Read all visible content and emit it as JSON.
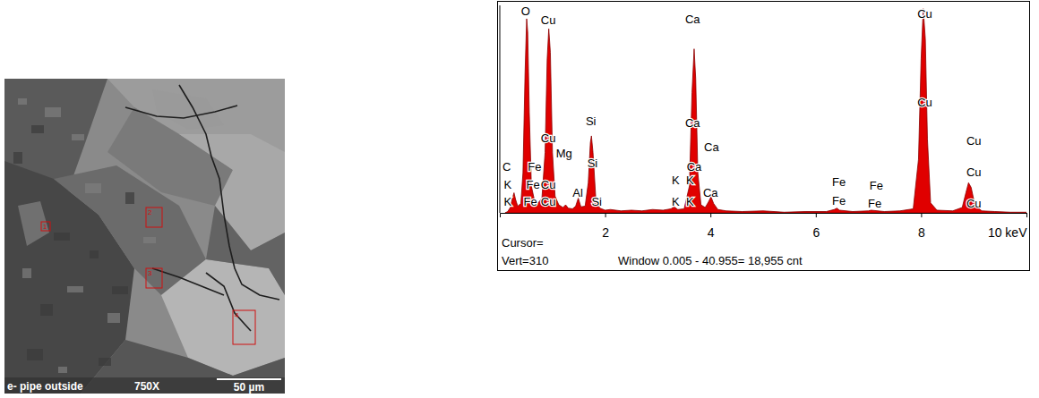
{
  "micrograph": {
    "caption": "e- pipe outside",
    "magnification": "750X",
    "scale_bar": "50 µm",
    "regions": [
      "1",
      "2",
      "3",
      "4"
    ]
  },
  "chart_data": {
    "type": "area",
    "color": "#e00000",
    "tick_labels": "x",
    "xlim": [
      0,
      10
    ],
    "ylim": [
      0,
      310
    ],
    "xticks": [
      2,
      4,
      6,
      8,
      {
        "value": 10,
        "label": "10 keV"
      }
    ],
    "x": [
      0.1,
      0.15,
      0.2,
      0.24,
      0.27,
      0.3,
      0.34,
      0.4,
      0.44,
      0.48,
      0.51,
      0.53,
      0.56,
      0.6,
      0.66,
      0.72,
      0.8,
      0.86,
      0.9,
      0.93,
      0.96,
      1.0,
      1.05,
      1.12,
      1.2,
      1.25,
      1.3,
      1.38,
      1.44,
      1.49,
      1.54,
      1.62,
      1.68,
      1.72,
      1.74,
      1.77,
      1.82,
      1.9,
      2.0,
      2.1,
      2.3,
      2.5,
      2.7,
      2.9,
      3.1,
      3.25,
      3.31,
      3.38,
      3.5,
      3.6,
      3.65,
      3.69,
      3.72,
      3.76,
      3.82,
      3.9,
      3.96,
      4.01,
      4.06,
      4.14,
      4.3,
      4.6,
      5.0,
      5.4,
      5.8,
      6.2,
      6.35,
      6.4,
      6.45,
      6.7,
      7.0,
      7.05,
      7.3,
      7.6,
      7.85,
      7.95,
      8.0,
      8.04,
      8.08,
      8.12,
      8.18,
      8.3,
      8.6,
      8.78,
      8.85,
      8.9,
      8.95,
      9.02,
      9.15,
      9.4,
      9.7,
      10.0
    ],
    "values": [
      0,
      2,
      8,
      22,
      30,
      20,
      10,
      14,
      60,
      210,
      290,
      270,
      150,
      40,
      18,
      14,
      22,
      90,
      230,
      275,
      240,
      90,
      25,
      12,
      8,
      12,
      7,
      6,
      10,
      22,
      9,
      10,
      45,
      105,
      115,
      90,
      25,
      7,
      4,
      5,
      3,
      4,
      3,
      5,
      4,
      6,
      9,
      5,
      6,
      40,
      180,
      245,
      200,
      60,
      12,
      8,
      16,
      24,
      14,
      5,
      3,
      2,
      3,
      1,
      2,
      2,
      5,
      7,
      4,
      2,
      3,
      4,
      2,
      3,
      6,
      80,
      230,
      305,
      260,
      110,
      15,
      4,
      3,
      8,
      30,
      45,
      38,
      12,
      3,
      2,
      1,
      1
    ],
    "annotations": [
      {
        "text": "O",
        "x": 0.49,
        "y": 300
      },
      {
        "text": "Cu",
        "x": 0.92,
        "y": 287
      },
      {
        "text": "Cu",
        "x": 0.92,
        "y": 110
      },
      {
        "text": "Mg",
        "x": 1.22,
        "y": 88
      },
      {
        "text": "C",
        "x": 0.13,
        "y": 67
      },
      {
        "text": "Fe",
        "x": 0.66,
        "y": 67
      },
      {
        "text": "K",
        "x": 0.15,
        "y": 41
      },
      {
        "text": "Fe",
        "x": 0.63,
        "y": 41
      },
      {
        "text": "Cu",
        "x": 0.92,
        "y": 41
      },
      {
        "text": "K",
        "x": 0.15,
        "y": 15
      },
      {
        "text": "Fe",
        "x": 0.58,
        "y": 15
      },
      {
        "text": "Cu",
        "x": 0.92,
        "y": 15
      },
      {
        "text": "Al",
        "x": 1.48,
        "y": 28
      },
      {
        "text": "Si",
        "x": 1.73,
        "y": 136
      },
      {
        "text": "Si",
        "x": 1.76,
        "y": 73
      },
      {
        "text": "Si",
        "x": 1.84,
        "y": 15
      },
      {
        "text": "Ca",
        "x": 3.66,
        "y": 288
      },
      {
        "text": "Ca",
        "x": 3.66,
        "y": 133
      },
      {
        "text": "Ca",
        "x": 4.02,
        "y": 97
      },
      {
        "text": "Ca",
        "x": 3.69,
        "y": 68
      },
      {
        "text": "Ca",
        "x": 4.0,
        "y": 29
      },
      {
        "text": "K",
        "x": 3.34,
        "y": 47
      },
      {
        "text": "K",
        "x": 3.61,
        "y": 47
      },
      {
        "text": "K",
        "x": 3.34,
        "y": 15
      },
      {
        "text": "K",
        "x": 3.61,
        "y": 15
      },
      {
        "text": "Fe",
        "x": 6.44,
        "y": 45
      },
      {
        "text": "Fe",
        "x": 7.15,
        "y": 40
      },
      {
        "text": "Fe",
        "x": 6.44,
        "y": 17
      },
      {
        "text": "Fe",
        "x": 7.12,
        "y": 13
      },
      {
        "text": "Cu",
        "x": 8.07,
        "y": 296
      },
      {
        "text": "Cu",
        "x": 8.07,
        "y": 164
      },
      {
        "text": "Cu",
        "x": 9.0,
        "y": 106
      },
      {
        "text": "Cu",
        "x": 9.0,
        "y": 60
      },
      {
        "text": "Cu",
        "x": 9.0,
        "y": 13
      }
    ],
    "footer": [
      "Cursor=",
      "Vert=310",
      "Window 0.005 - 40.955= 18,955 cnt"
    ]
  }
}
